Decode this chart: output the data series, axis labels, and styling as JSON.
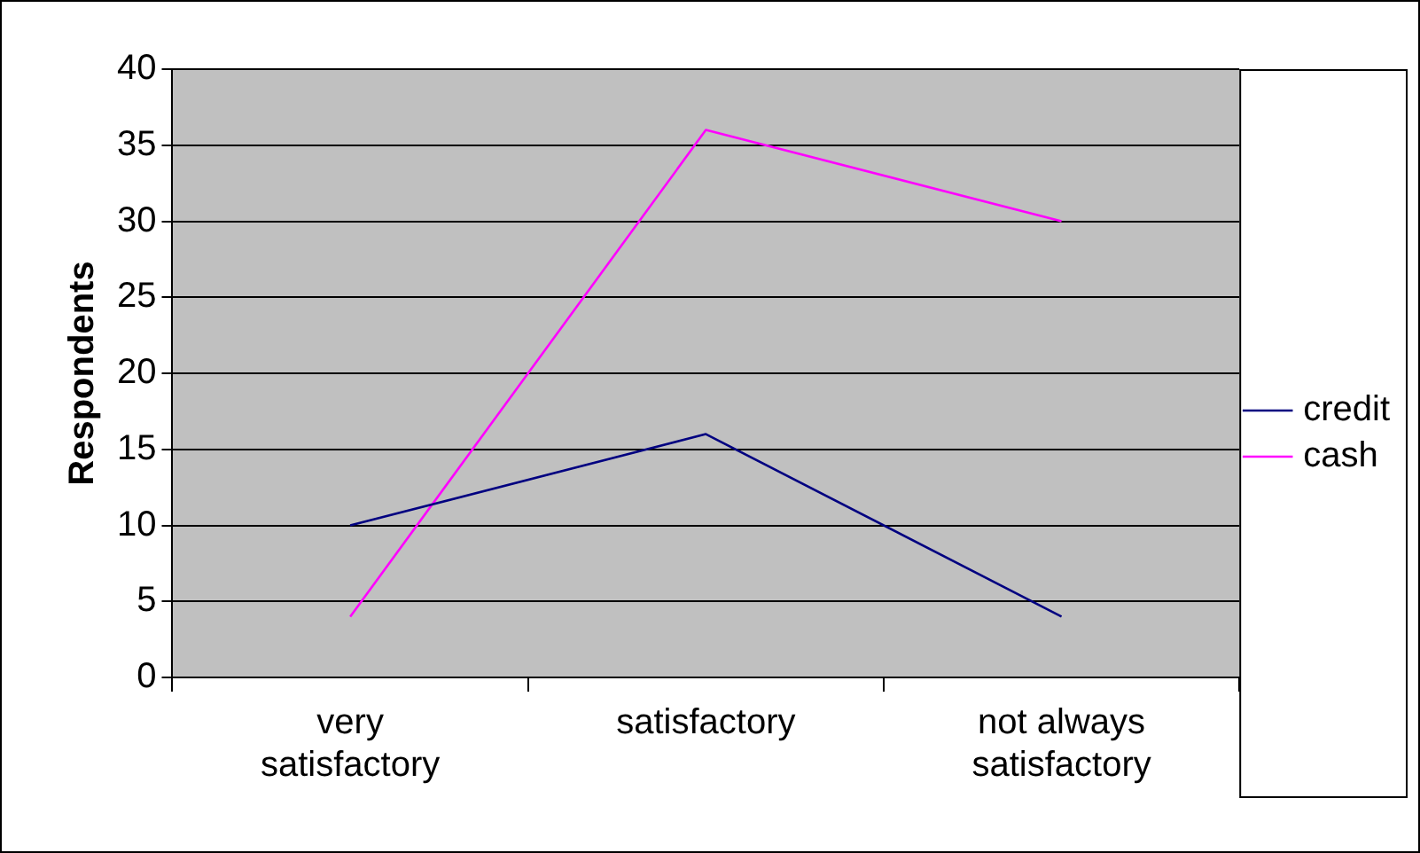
{
  "chart_data": {
    "type": "line",
    "ylabel": "Respondents",
    "categories": [
      "very satisfactory",
      "satisfactory",
      "not always satisfactory"
    ],
    "series": [
      {
        "name": "credit",
        "color": "#000080",
        "values": [
          10,
          16,
          4
        ]
      },
      {
        "name": "cash",
        "color": "#ff00ff",
        "values": [
          4,
          36,
          30
        ]
      }
    ],
    "ylim": [
      0,
      40
    ],
    "yticks": [
      0,
      5,
      10,
      15,
      20,
      25,
      30,
      35,
      40
    ],
    "grid": "y",
    "legend": "right",
    "marker": "none",
    "line_style": "solid"
  }
}
